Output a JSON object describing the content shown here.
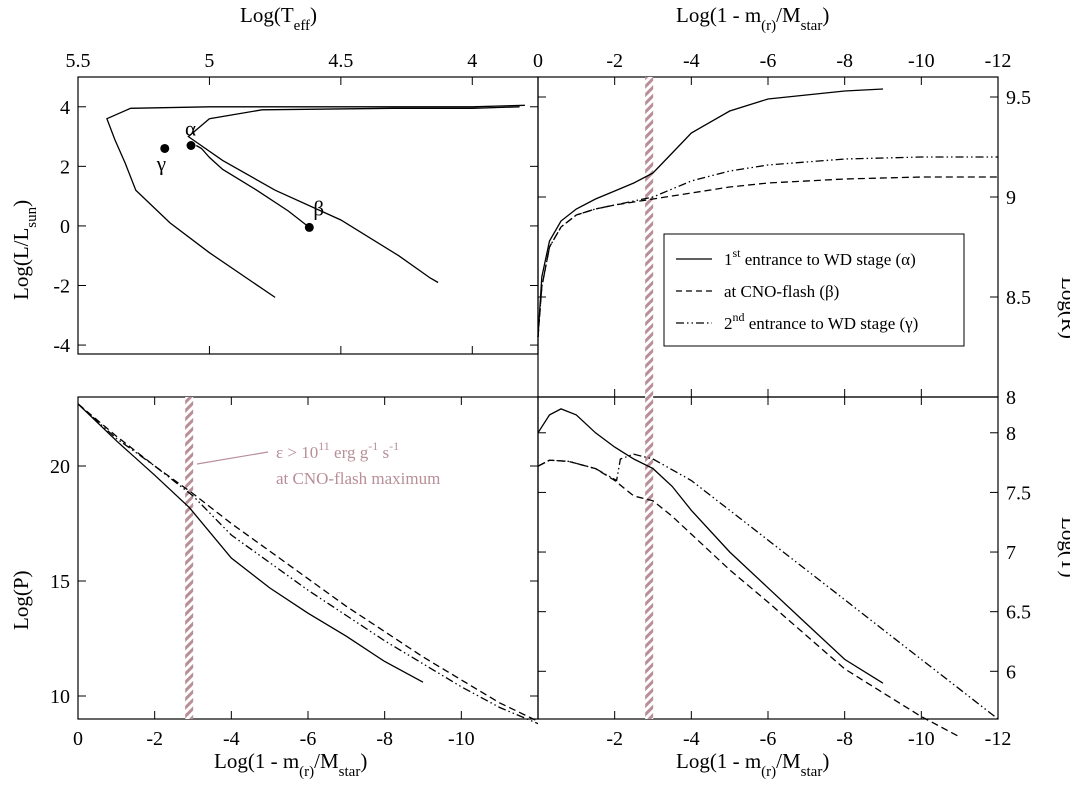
{
  "colors": {
    "line": "#000000",
    "band": "#b88f98",
    "band_light": "#ffffff",
    "annotation": "#b88f98"
  },
  "chart_data": [
    {
      "panel": "hr-diagram",
      "type": "line",
      "xlabel": "Log(T_eff)",
      "ylabel": "Log(L/L_sun)",
      "xlim": [
        5.5,
        3.75
      ],
      "ylim": [
        -4.3,
        5
      ],
      "x_ticks": [
        5.5,
        5,
        4.5,
        4
      ],
      "y_ticks": [
        -4,
        -2,
        0,
        2,
        4
      ],
      "series": [
        {
          "points": [
            [
              4.75,
              -2.4
            ],
            [
              5.0,
              -0.9
            ],
            [
              5.15,
              0.1
            ],
            [
              5.28,
              1.2
            ],
            [
              5.32,
              2.1
            ],
            [
              5.36,
              2.9
            ],
            [
              5.39,
              3.6
            ],
            [
              5.3,
              3.95
            ],
            [
              5.0,
              4.0
            ],
            [
              4.5,
              4.0
            ],
            [
              4.0,
              4.0
            ],
            [
              3.8,
              4.05
            ]
          ]
        },
        {
          "points": [
            [
              4.13,
              -1.9
            ],
            [
              4.16,
              -1.75
            ],
            [
              4.28,
              -1.0
            ],
            [
              4.5,
              0.2
            ],
            [
              4.75,
              1.2
            ],
            [
              4.95,
              2.2
            ],
            [
              5.08,
              3.0
            ],
            [
              5.0,
              3.6
            ],
            [
              4.8,
              3.9
            ],
            [
              4.3,
              3.95
            ],
            [
              4.0,
              3.95
            ],
            [
              3.82,
              4.0
            ]
          ]
        },
        {
          "points": [
            [
              4.62,
              -0.05
            ],
            [
              4.7,
              0.5
            ],
            [
              4.82,
              1.2
            ],
            [
              4.95,
              1.9
            ],
            [
              5.0,
              2.3
            ],
            [
              5.03,
              2.6
            ],
            [
              5.05,
              2.7
            ]
          ]
        }
      ],
      "markers": [
        {
          "label": "α",
          "x": 5.07,
          "y": 2.7
        },
        {
          "label": "β",
          "x": 4.62,
          "y": -0.05
        },
        {
          "label": "γ",
          "x": 5.17,
          "y": 2.6
        }
      ]
    },
    {
      "panel": "radius",
      "type": "line",
      "xlabel": "Log(1 - m_(r)/M_star)",
      "ylabel": "Log(R)",
      "xlim": [
        0,
        -12
      ],
      "ylim": [
        8,
        9.6
      ],
      "x_ticks": [
        0,
        -2,
        -4,
        -6,
        -8,
        -10,
        -12
      ],
      "y_ticks": [
        8,
        8.5,
        9,
        9.5
      ],
      "series": [
        {
          "name": "1st entrance to WD stage (α)",
          "style": "solid",
          "x": [
            0,
            -0.1,
            -0.3,
            -0.6,
            -1.0,
            -1.5,
            -2.0,
            -2.5,
            -3.0,
            -3.5,
            -4.0,
            -5.0,
            -6.0,
            -7.0,
            -8.0,
            -9.0
          ],
          "y": [
            8.3,
            8.6,
            8.78,
            8.88,
            8.94,
            8.99,
            9.03,
            9.07,
            9.12,
            9.22,
            9.32,
            9.43,
            9.49,
            9.51,
            9.53,
            9.54
          ]
        },
        {
          "name": "at CNO-flash (β)",
          "style": "dashed",
          "x": [
            0,
            -0.1,
            -0.3,
            -0.6,
            -1.0,
            -1.5,
            -2.0,
            -3.0,
            -4.0,
            -5.0,
            -6.0,
            -8.0,
            -10.0,
            -12.0
          ],
          "y": [
            8.3,
            8.55,
            8.75,
            8.85,
            8.91,
            8.94,
            8.96,
            8.99,
            9.02,
            9.05,
            9.07,
            9.09,
            9.1,
            9.1
          ]
        },
        {
          "name": "2nd entrance to WD stage (γ)",
          "style": "dash-dot-dot",
          "x": [
            0,
            -0.1,
            -0.3,
            -0.6,
            -1.0,
            -1.5,
            -2.0,
            -3.0,
            -4.0,
            -5.0,
            -6.0,
            -8.0,
            -10.0,
            -12.0
          ],
          "y": [
            8.3,
            8.55,
            8.75,
            8.85,
            8.91,
            8.94,
            8.96,
            9.0,
            9.08,
            9.13,
            9.16,
            9.19,
            9.2,
            9.2
          ]
        }
      ],
      "legend": {
        "entries": [
          {
            "pre": "1",
            "sup": "st",
            "post": " entrance to WD stage (α)"
          },
          {
            "pre": "at CNO-flash (β)",
            "sup": "",
            "post": ""
          },
          {
            "pre": "2",
            "sup": "nd",
            "post": " entrance to WD stage (γ)"
          }
        ]
      }
    },
    {
      "panel": "pressure",
      "type": "line",
      "xlabel": "Log(1 - m_(r)/M_star)",
      "ylabel": "Log(P)",
      "xlim": [
        0,
        -12
      ],
      "ylim": [
        9,
        23
      ],
      "x_ticks": [
        0,
        -2,
        -4,
        -6,
        -8,
        -10
      ],
      "y_ticks": [
        10,
        15,
        20
      ],
      "series": [
        {
          "name": "α",
          "style": "solid",
          "x": [
            0,
            -1,
            -2,
            -2.9,
            -4,
            -5,
            -6,
            -7,
            -8,
            -9
          ],
          "y": [
            22.7,
            21.1,
            19.6,
            18.2,
            16.0,
            14.7,
            13.6,
            12.6,
            11.5,
            10.6
          ]
        },
        {
          "name": "β",
          "style": "dashed",
          "x": [
            0,
            -1,
            -2,
            -3,
            -4,
            -5,
            -6,
            -7,
            -8,
            -9,
            -10,
            -11,
            -12
          ],
          "y": [
            22.7,
            21.3,
            20.0,
            18.8,
            17.5,
            16.3,
            15.1,
            13.9,
            12.8,
            11.7,
            10.7,
            9.7,
            8.9
          ]
        },
        {
          "name": "γ",
          "style": "dash-dot-dot",
          "x": [
            0,
            -1,
            -2,
            -3,
            -4,
            -5,
            -6,
            -7,
            -8,
            -9,
            -10,
            -11,
            -12
          ],
          "y": [
            22.7,
            21.2,
            20.0,
            18.7,
            17.0,
            15.8,
            14.6,
            13.5,
            12.4,
            11.4,
            10.4,
            9.5,
            8.8
          ]
        }
      ],
      "annotation": {
        "line1_pre": "ε > 10",
        "line1_sup1": "11",
        "line1_mid": " erg g",
        "line1_sup2": "-1",
        "line1_post": " s",
        "line1_sup3": "-1",
        "line2": "at CNO-flash maximum"
      }
    },
    {
      "panel": "temperature",
      "type": "line",
      "xlabel": "Log(1 - m_(r)/M_star)",
      "ylabel": "Log(T)",
      "xlim": [
        0,
        -12
      ],
      "ylim": [
        5.6,
        8.3
      ],
      "x_ticks": [
        -2,
        -4,
        -6,
        -8,
        -10,
        -12
      ],
      "y_ticks": [
        6,
        6.5,
        7,
        7.5,
        8
      ],
      "series": [
        {
          "name": "α",
          "style": "solid",
          "x": [
            0,
            -0.3,
            -0.6,
            -1,
            -1.5,
            -2,
            -2.5,
            -3,
            -3.5,
            -4,
            -5,
            -6,
            -7,
            -8,
            -9
          ],
          "y": [
            8.0,
            8.15,
            8.2,
            8.15,
            8.0,
            7.88,
            7.78,
            7.7,
            7.55,
            7.35,
            7.0,
            6.7,
            6.4,
            6.1,
            5.9
          ]
        },
        {
          "name": "β",
          "style": "dashed",
          "x": [
            0,
            -0.3,
            -0.8,
            -1.5,
            -2,
            -2.5,
            -3,
            -3.5,
            -4,
            -5,
            -6,
            -7,
            -8,
            -9,
            -10,
            -11
          ],
          "y": [
            7.72,
            7.77,
            7.76,
            7.7,
            7.6,
            7.47,
            7.43,
            7.3,
            7.15,
            6.85,
            6.58,
            6.3,
            6.02,
            5.82,
            5.62,
            5.45
          ]
        },
        {
          "name": "γ",
          "style": "dash-dot-dot",
          "x": [
            0,
            -0.3,
            -0.8,
            -1.5,
            -2.05,
            -2.15,
            -2.5,
            -3,
            -4,
            -5,
            -6,
            -7,
            -8,
            -9,
            -10,
            -11,
            -12
          ],
          "y": [
            7.72,
            7.77,
            7.76,
            7.7,
            7.6,
            7.78,
            7.82,
            7.78,
            7.6,
            7.35,
            7.1,
            6.85,
            6.6,
            6.35,
            6.1,
            5.85,
            5.6
          ]
        }
      ]
    }
  ],
  "band_x": -2.9
}
